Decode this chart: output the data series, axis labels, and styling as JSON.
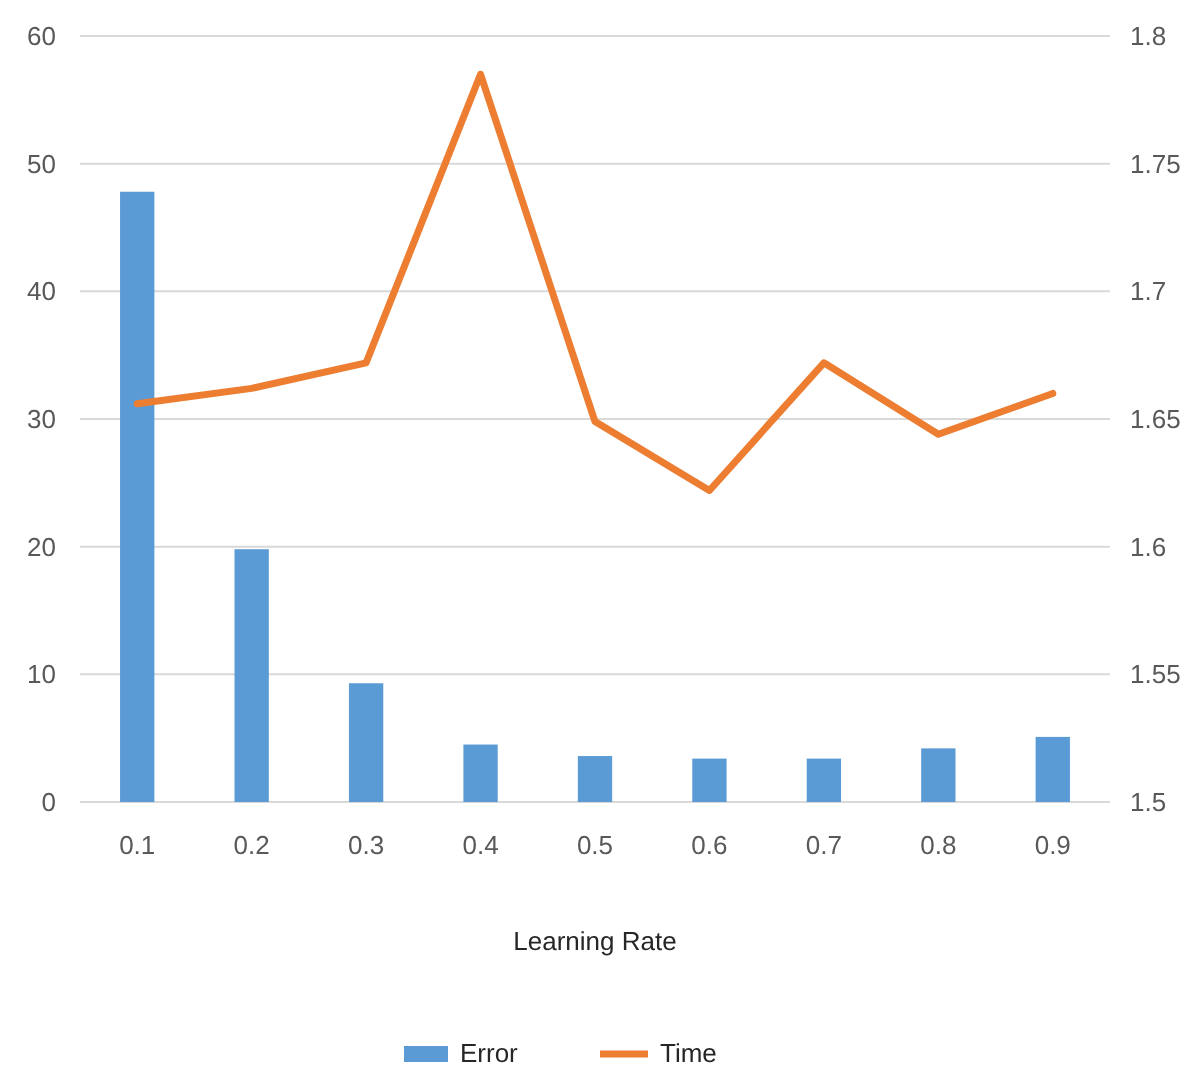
{
  "chart_data": {
    "type": "bar",
    "xlabel": "Learning Rate",
    "categories": [
      "0.1",
      "0.2",
      "0.3",
      "0.4",
      "0.5",
      "0.6",
      "0.7",
      "0.8",
      "0.9"
    ],
    "series": [
      {
        "name": "Error",
        "color": "#5b9bd5",
        "values": [
          47.8,
          19.8,
          9.3,
          4.5,
          3.6,
          3.4,
          3.4,
          4.2,
          5.1
        ]
      },
      {
        "name": "Time",
        "type": "line",
        "axis": "y2",
        "color": "#ed7d31",
        "values": [
          1.656,
          1.662,
          1.672,
          1.785,
          1.649,
          1.622,
          1.672,
          1.644,
          1.66
        ]
      }
    ],
    "ylim": [
      0,
      60
    ],
    "yticks": [
      0,
      10,
      20,
      30,
      40,
      50,
      60
    ],
    "y2lim": [
      1.5,
      1.8
    ],
    "y2ticks": [
      1.5,
      1.55,
      1.6,
      1.65,
      1.7,
      1.75,
      1.8
    ],
    "grid": "y",
    "legend": "bottom",
    "marker": "none",
    "line_style": "solid"
  }
}
